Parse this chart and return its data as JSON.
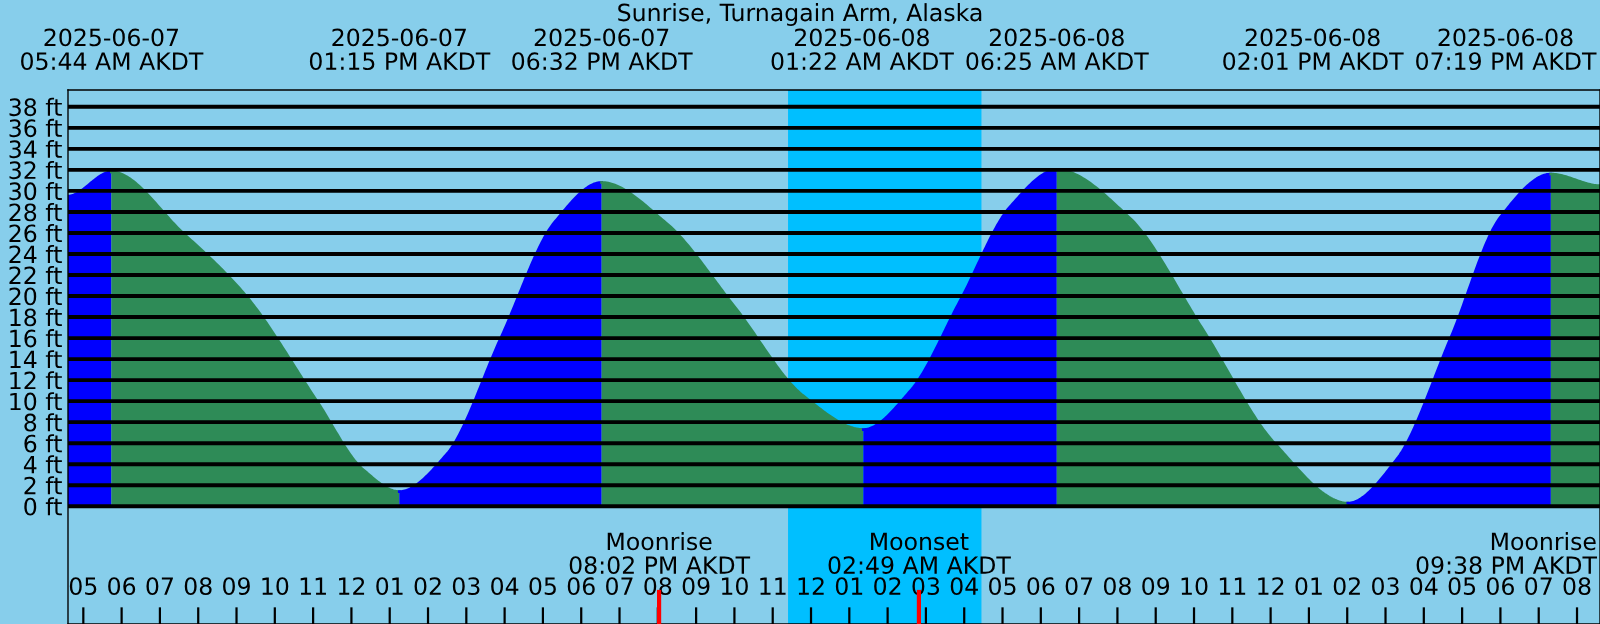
{
  "chart_data": {
    "type": "area",
    "title": "Sunrise, Turnagain Arm, Alaska",
    "series": [
      {
        "color": "#0000ff",
        "x": [
          "2025-06-07T04:36",
          "2025-06-07T05:44"
        ],
        "values": [
          29.5,
          31.8
        ]
      },
      {
        "color": "#2e8b57",
        "x": [
          "2025-06-07T05:44",
          "2025-06-07T07:36",
          "2025-06-07T09:15",
          "2025-06-07T11:06",
          "2025-06-07T12:18",
          "2025-06-07T13:15"
        ],
        "values": [
          31.8,
          26,
          20,
          10,
          3.5,
          1.4
        ]
      },
      {
        "color": "#0000ff",
        "x": [
          "2025-06-07T13:15",
          "2025-06-07T14:30",
          "2025-06-07T15:54",
          "2025-06-07T17:18",
          "2025-06-07T18:32"
        ],
        "values": [
          1.4,
          5,
          16,
          27,
          30.8
        ]
      },
      {
        "color": "#2e8b57",
        "x": [
          "2025-06-07T18:32",
          "2025-06-07T20:12",
          "2025-06-07T22:00",
          "2025-06-07T23:48",
          "2025-06-08T01:22"
        ],
        "values": [
          30.8,
          27,
          19,
          10.5,
          7.3
        ]
      },
      {
        "color": "#0000ff",
        "x": [
          "2025-06-08T01:22",
          "2025-06-08T02:36",
          "2025-06-08T03:54",
          "2025-06-08T05:12",
          "2025-06-08T06:25"
        ],
        "values": [
          7.3,
          11,
          19.6,
          28.5,
          32.0
        ]
      },
      {
        "color": "#2e8b57",
        "x": [
          "2025-06-08T06:25",
          "2025-06-08T08:18",
          "2025-06-08T10:12",
          "2025-06-08T12:06",
          "2025-06-08T14:01"
        ],
        "values": [
          32.0,
          27.5,
          17,
          6,
          0.3
        ]
      },
      {
        "color": "#0000ff",
        "x": [
          "2025-06-08T14:01",
          "2025-06-08T15:18",
          "2025-06-08T16:42",
          "2025-06-08T18:00",
          "2025-06-08T19:19"
        ],
        "values": [
          0.3,
          4.5,
          16,
          27.5,
          31.6
        ]
      },
      {
        "color": "#2e8b57",
        "x": [
          "2025-06-08T19:19",
          "2025-06-08T20:36"
        ],
        "values": [
          31.6,
          30.5
        ]
      }
    ],
    "xlim": [
      "2025-06-07T04:36",
      "2025-06-08T20:36"
    ],
    "xticks": [
      {
        "value": "2025-06-07T05:00",
        "label": "05"
      },
      {
        "value": "2025-06-07T06:00",
        "label": "06"
      },
      {
        "value": "2025-06-07T07:00",
        "label": "07"
      },
      {
        "value": "2025-06-07T08:00",
        "label": "08"
      },
      {
        "value": "2025-06-07T09:00",
        "label": "09"
      },
      {
        "value": "2025-06-07T10:00",
        "label": "10"
      },
      {
        "value": "2025-06-07T11:00",
        "label": "11"
      },
      {
        "value": "2025-06-07T12:00",
        "label": "12"
      },
      {
        "value": "2025-06-07T13:00",
        "label": "01"
      },
      {
        "value": "2025-06-07T14:00",
        "label": "02"
      },
      {
        "value": "2025-06-07T15:00",
        "label": "03"
      },
      {
        "value": "2025-06-07T16:00",
        "label": "04"
      },
      {
        "value": "2025-06-07T17:00",
        "label": "05"
      },
      {
        "value": "2025-06-07T18:00",
        "label": "06"
      },
      {
        "value": "2025-06-07T19:00",
        "label": "07"
      },
      {
        "value": "2025-06-07T20:00",
        "label": "08"
      },
      {
        "value": "2025-06-07T21:00",
        "label": "09"
      },
      {
        "value": "2025-06-07T22:00",
        "label": "10"
      },
      {
        "value": "2025-06-07T23:00",
        "label": "11"
      },
      {
        "value": "2025-06-08T00:00",
        "label": "12"
      },
      {
        "value": "2025-06-08T01:00",
        "label": "01"
      },
      {
        "value": "2025-06-08T02:00",
        "label": "02"
      },
      {
        "value": "2025-06-08T03:00",
        "label": "03"
      },
      {
        "value": "2025-06-08T04:00",
        "label": "04"
      },
      {
        "value": "2025-06-08T05:00",
        "label": "05"
      },
      {
        "value": "2025-06-08T06:00",
        "label": "06"
      },
      {
        "value": "2025-06-08T07:00",
        "label": "07"
      },
      {
        "value": "2025-06-08T08:00",
        "label": "08"
      },
      {
        "value": "2025-06-08T09:00",
        "label": "09"
      },
      {
        "value": "2025-06-08T10:00",
        "label": "10"
      },
      {
        "value": "2025-06-08T11:00",
        "label": "11"
      },
      {
        "value": "2025-06-08T12:00",
        "label": "12"
      },
      {
        "value": "2025-06-08T13:00",
        "label": "01"
      },
      {
        "value": "2025-06-08T14:00",
        "label": "02"
      },
      {
        "value": "2025-06-08T15:00",
        "label": "03"
      },
      {
        "value": "2025-06-08T16:00",
        "label": "04"
      },
      {
        "value": "2025-06-08T17:00",
        "label": "05"
      },
      {
        "value": "2025-06-08T18:00",
        "label": "06"
      },
      {
        "value": "2025-06-08T19:00",
        "label": "07"
      },
      {
        "value": "2025-06-08T20:00",
        "label": "08"
      }
    ],
    "ylim": [
      -11.2,
      39.6
    ],
    "yticks": [
      {
        "value": 0,
        "label": "0 ft"
      },
      {
        "value": 2,
        "label": "2 ft"
      },
      {
        "value": 4,
        "label": "4 ft"
      },
      {
        "value": 6,
        "label": "6 ft"
      },
      {
        "value": 8,
        "label": "8 ft"
      },
      {
        "value": 10,
        "label": "10 ft"
      },
      {
        "value": 12,
        "label": "12 ft"
      },
      {
        "value": 14,
        "label": "14 ft"
      },
      {
        "value": 16,
        "label": "16 ft"
      },
      {
        "value": 18,
        "label": "18 ft"
      },
      {
        "value": 20,
        "label": "20 ft"
      },
      {
        "value": 22,
        "label": "22 ft"
      },
      {
        "value": 24,
        "label": "24 ft"
      },
      {
        "value": 26,
        "label": "26 ft"
      },
      {
        "value": 28,
        "label": "28 ft"
      },
      {
        "value": 30,
        "label": "30 ft"
      },
      {
        "value": 32,
        "label": "32 ft"
      },
      {
        "value": 34,
        "label": "34 ft"
      },
      {
        "value": 36,
        "label": "36 ft"
      },
      {
        "value": 38,
        "label": "38 ft"
      }
    ],
    "grid": "y",
    "bands": [
      {
        "axis": "x",
        "from": "2025-06-07T23:24",
        "to": "2025-06-08T04:27",
        "color": "#00bfff"
      }
    ],
    "ref_lines": [
      {
        "axis": "x",
        "value": "2025-06-07T20:02",
        "label": "Moonrise\n08:02 PM AKDT",
        "color": "#ff0000"
      },
      {
        "axis": "x",
        "value": "2025-06-08T02:49",
        "label": "Moonset\n02:49 AM AKDT",
        "color": "#ff0000"
      }
    ],
    "annotations": [
      "2025-06-07\n05:44 AM AKDT",
      "2025-06-07\n01:15 PM AKDT",
      "2025-06-07\n06:32 PM AKDT",
      "2025-06-08\n01:22 AM AKDT",
      "2025-06-08\n06:25 AM AKDT",
      "2025-06-08\n02:01 PM AKDT",
      "2025-06-08\n07:19 PM AKDT",
      "Moonrise\n09:38 PM AKDT"
    ]
  }
}
